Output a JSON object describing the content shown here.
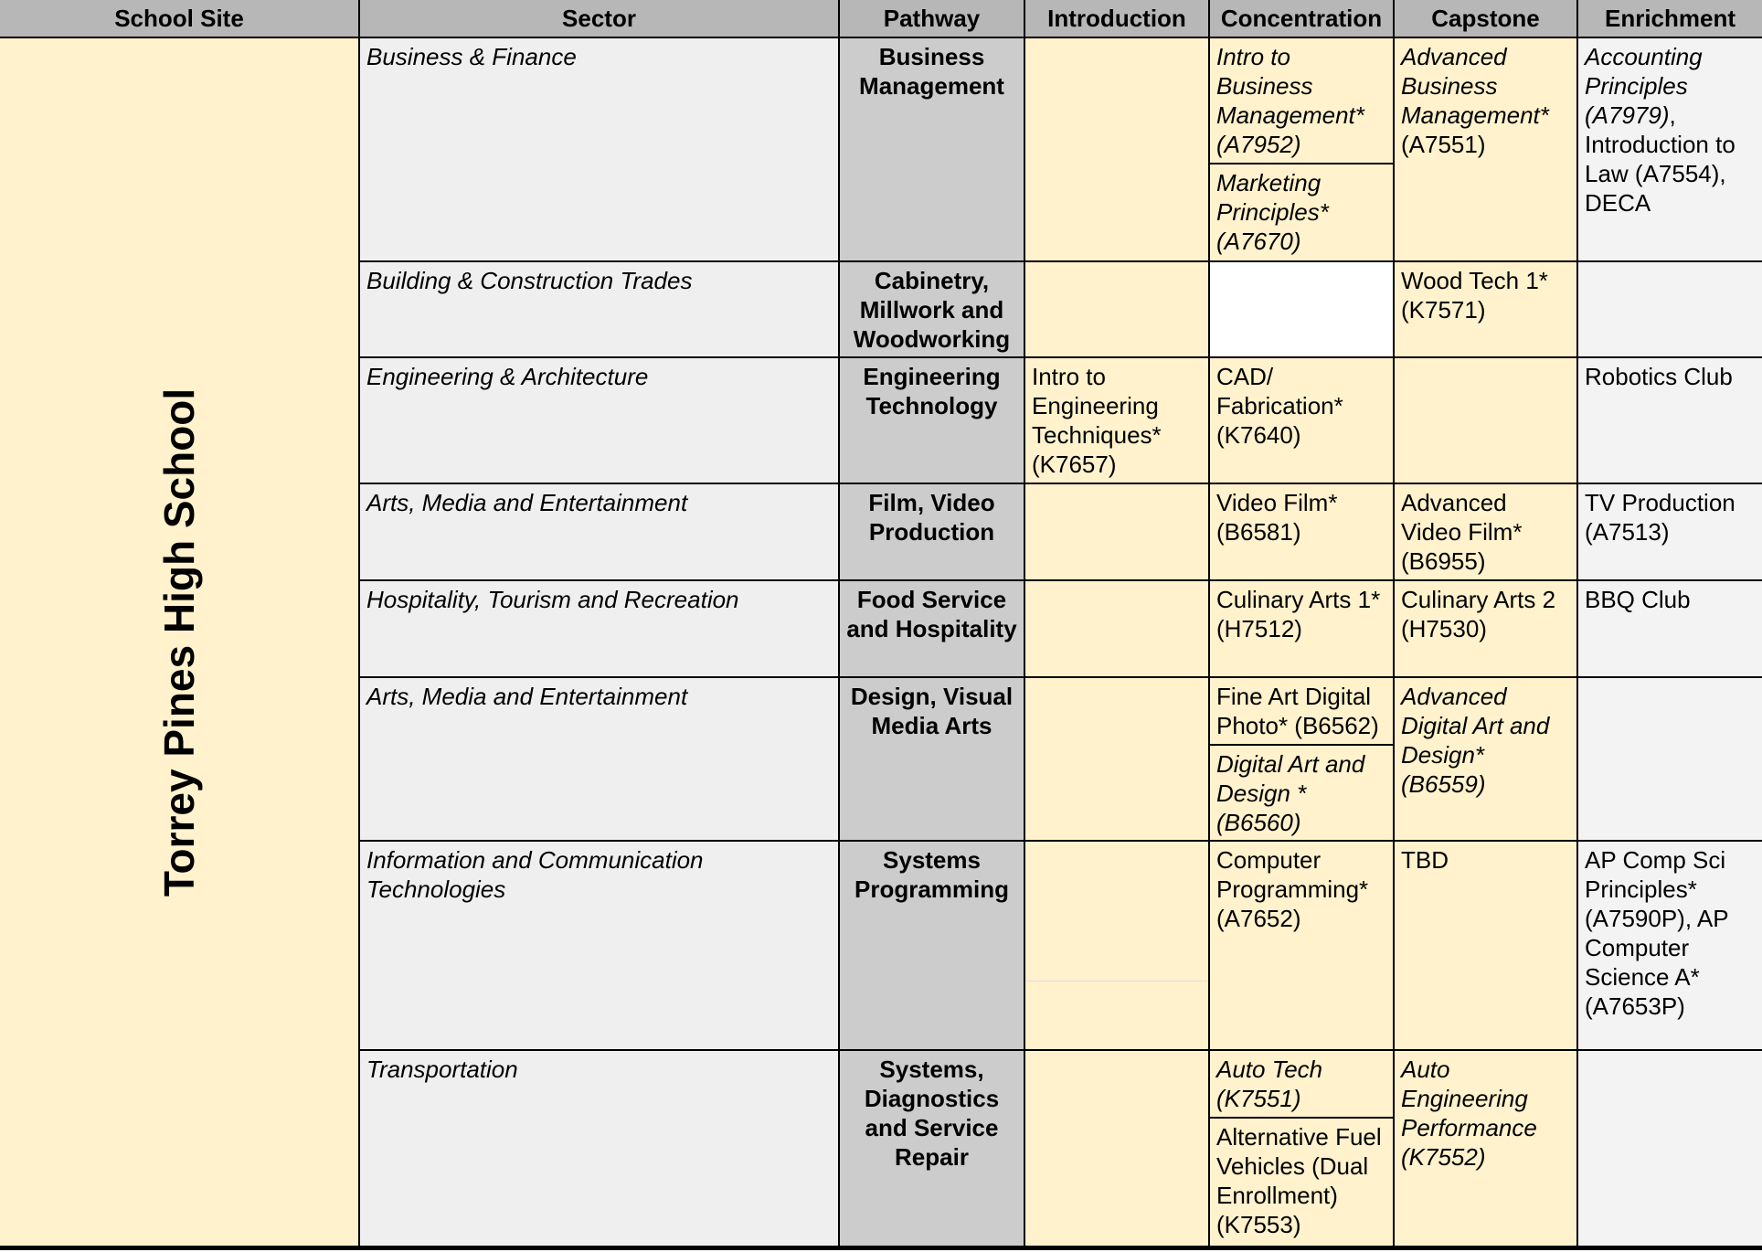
{
  "headers": [
    "School Site",
    "Sector",
    "Pathway",
    "Introduction",
    "Concentration",
    "Capstone",
    "Enrichment"
  ],
  "school_site": "Torrey Pines High School",
  "colors": {
    "header": "#b7b7b7",
    "highlight": "#fff2cc",
    "sector": "#efefef",
    "pathway": "#cccccc",
    "enrichment": "#f3f3f3"
  },
  "rows": [
    {
      "sector": "Business & Finance",
      "pathway": "Business Management",
      "introduction": {
        "bg": "y",
        "items": []
      },
      "concentration": {
        "bg": "y",
        "items": [
          {
            "text": "Intro to Business Management* (A7952)",
            "italic": true
          },
          {
            "text": "Marketing Principles* (A7670)",
            "italic": true
          }
        ]
      },
      "capstone": {
        "bg": "y",
        "segments": [
          {
            "text": "Advanced Business Management*",
            "italic": true
          },
          {
            "text": " (A7551)"
          }
        ]
      },
      "enrichment": {
        "bg": "g",
        "segments": [
          {
            "text": "Accounting Principles (A7979)",
            "italic": true
          },
          {
            "text": ", Introduction to Law (A7554), DECA"
          }
        ]
      }
    },
    {
      "sector": "Building & Construction Trades",
      "pathway": "Cabinetry, Millwork and Woodworking",
      "introduction": {
        "bg": "y",
        "items": []
      },
      "concentration": {
        "bg": "w",
        "items": []
      },
      "capstone": {
        "bg": "y",
        "segments": [
          {
            "text": "Wood Tech 1* (K7571)"
          }
        ]
      },
      "enrichment": {
        "bg": "g",
        "segments": []
      }
    },
    {
      "sector": "Engineering & Architecture",
      "pathway": "Engineering Technology",
      "introduction": {
        "bg": "y",
        "items": [
          {
            "text": "Intro to Engineering Techniques* (K7657)"
          }
        ]
      },
      "concentration": {
        "bg": "y",
        "items": [
          {
            "text": "CAD/ Fabrication* (K7640)"
          }
        ]
      },
      "capstone": {
        "bg": "y",
        "segments": []
      },
      "enrichment": {
        "bg": "g",
        "segments": [
          {
            "text": "Robotics Club"
          }
        ]
      }
    },
    {
      "sector": "Arts, Media and Entertainment",
      "pathway": "Film, Video Production",
      "introduction": {
        "bg": "y",
        "items": []
      },
      "concentration": {
        "bg": "y",
        "items": [
          {
            "text": "Video Film* (B6581)"
          }
        ]
      },
      "capstone": {
        "bg": "y",
        "segments": [
          {
            "text": "Advanced Video Film* (B6955)"
          }
        ]
      },
      "enrichment": {
        "bg": "g",
        "segments": [
          {
            "text": "TV Production (A7513)"
          }
        ]
      }
    },
    {
      "sector": "Hospitality, Tourism and Recreation",
      "pathway": "Food Service and Hospitality",
      "introduction": {
        "bg": "y",
        "items": []
      },
      "concentration": {
        "bg": "y",
        "items": [
          {
            "text": "Culinary Arts 1* (H7512)"
          }
        ]
      },
      "capstone": {
        "bg": "y",
        "segments": [
          {
            "text": "Culinary Arts 2 (H7530)"
          }
        ]
      },
      "enrichment": {
        "bg": "g",
        "segments": [
          {
            "text": "BBQ Club"
          }
        ]
      }
    },
    {
      "sector": "Arts, Media and Entertainment",
      "pathway": "Design, Visual Media Arts",
      "introduction": {
        "bg": "y",
        "items": []
      },
      "concentration": {
        "bg": "y",
        "items": [
          {
            "text": "Fine Art Digital Photo* (B6562)"
          },
          {
            "text": "Digital Art and Design * (B6560)",
            "italic": true
          }
        ]
      },
      "capstone": {
        "bg": "y",
        "segments": [
          {
            "text": "Advanced Digital Art and Design* (B6559)",
            "italic": true
          }
        ]
      },
      "enrichment": {
        "bg": "g",
        "segments": []
      }
    },
    {
      "sector": "Information and Communication Technologies",
      "pathway": "Systems Programming",
      "introduction": {
        "bg": "y",
        "items": [],
        "faint_split": true
      },
      "concentration": {
        "bg": "y",
        "items": [
          {
            "text": "Computer Programming* (A7652)"
          }
        ]
      },
      "capstone": {
        "bg": "y",
        "segments": [
          {
            "text": "TBD"
          }
        ]
      },
      "enrichment": {
        "bg": "g",
        "segments": [
          {
            "text": "AP Comp Sci Principles* (A7590P), AP Computer Science A* (A7653P)"
          }
        ]
      }
    },
    {
      "sector": "Transportation",
      "pathway": "Systems, Diagnostics and Service Repair",
      "introduction": {
        "bg": "y",
        "items": []
      },
      "concentration": {
        "bg": "y",
        "items": [
          {
            "text": "Auto Tech (K7551)",
            "italic": true
          },
          {
            "text": "Alternative Fuel Vehicles (Dual Enrollment) (K7553)"
          }
        ]
      },
      "capstone": {
        "bg": "y",
        "segments": [
          {
            "text": "Auto Engineering Performance (K7552)",
            "italic": true
          }
        ]
      },
      "enrichment": {
        "bg": "g",
        "segments": []
      }
    }
  ]
}
